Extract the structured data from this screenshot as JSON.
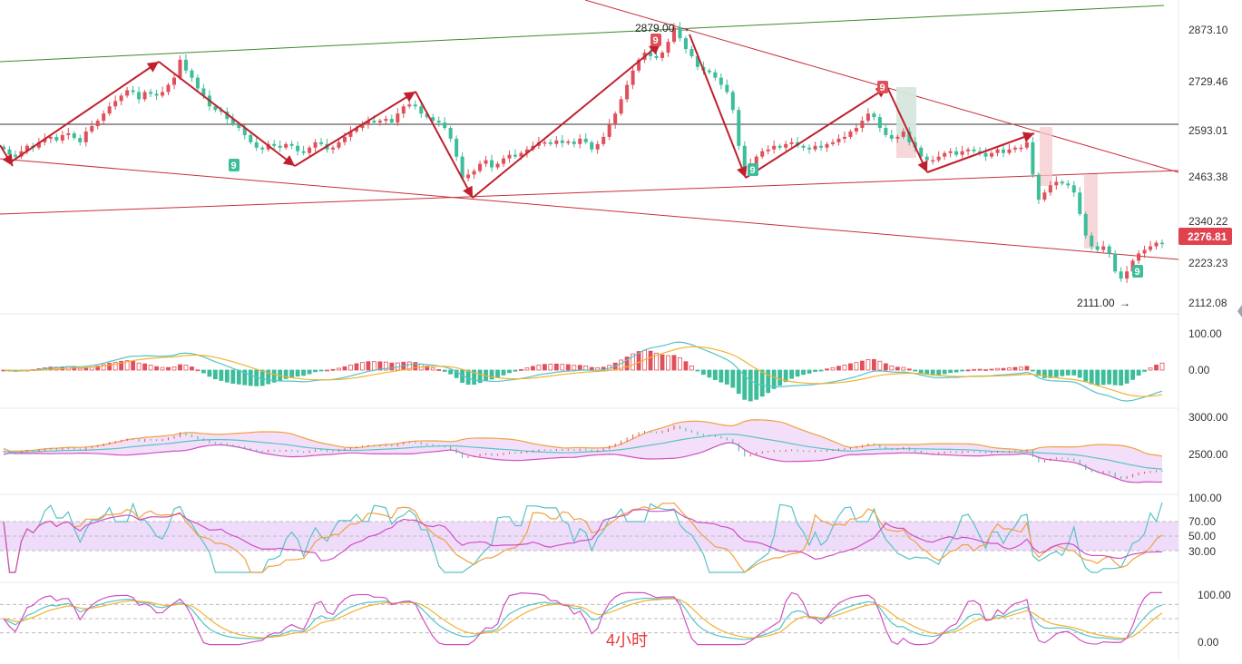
{
  "colors": {
    "up": "#e0505b",
    "down": "#3dbd9a",
    "trend_red": "#c8303a",
    "trend_green": "#3a8a2a",
    "wave_arrow": "#c0202d",
    "macd_dif": "#57c3c5",
    "macd_dea": "#f2b233",
    "boll_upper": "#f2a040",
    "boll_mid": "#57c3c5",
    "boll_lower": "#d050c0",
    "boll_fill": "#f2dcf8",
    "rsi_band": "#efdcfb",
    "rsi_1": "#d050c0",
    "rsi_2": "#f2a040",
    "rsi_3": "#57c3c5",
    "kdj_k": "#57c3c5",
    "kdj_d": "#f2b233",
    "kdj_j": "#d050c0",
    "current_price_bg": "#e04250"
  },
  "timeframe_label": "4小时",
  "main_panel": {
    "axis_labels": [
      "2873.10",
      "2729.46",
      "2593.01",
      "2463.38",
      "2340.22",
      "2223.23",
      "2112.08"
    ],
    "axis_values": [
      2873.1,
      2729.46,
      2593.01,
      2463.38,
      2340.22,
      2223.23,
      2112.08
    ],
    "current_price": "2276.81",
    "current_price_value": 2276.81,
    "high_label": "2879.00",
    "high_value": 2879.0,
    "low_label": "2111.00",
    "low_value": 2111.0,
    "horizontal_level": 2610,
    "nine_up_marker": "9",
    "nine_down_marker": "9"
  },
  "macd_panel": {
    "axis_labels": [
      "100.00",
      "0.00"
    ],
    "axis_values": [
      100,
      0
    ]
  },
  "boll_panel": {
    "axis_labels": [
      "3000.00",
      "2500.00"
    ],
    "axis_values": [
      3000,
      2500
    ]
  },
  "rsi_panel": {
    "axis_labels": [
      "100.00",
      "70.00",
      "50.00",
      "30.00"
    ],
    "axis_values": [
      100,
      70,
      50,
      30
    ]
  },
  "kdj_panel": {
    "axis_labels": [
      "100.00",
      "0.00"
    ],
    "axis_values": [
      100,
      0
    ]
  },
  "chart_data": {
    "type": "candlestick",
    "series": [
      {
        "name": "",
        "close": [
          2540,
          2525,
          2520,
          2535,
          2550,
          2545,
          2560,
          2570,
          2575,
          2565,
          2580,
          2585,
          2572,
          2560,
          2590,
          2605,
          2620,
          2640,
          2660,
          2675,
          2690,
          2705,
          2700,
          2680,
          2700,
          2695,
          2690,
          2700,
          2720,
          2740,
          2790,
          2760,
          2740,
          2710,
          2690,
          2660,
          2650,
          2645,
          2625,
          2610,
          2600,
          2580,
          2560,
          2545,
          2540,
          2555,
          2550,
          2545,
          2555,
          2550,
          2535,
          2530,
          2545,
          2560,
          2555,
          2540,
          2545,
          2560,
          2575,
          2590,
          2600,
          2610,
          2620,
          2615,
          2620,
          2625,
          2615,
          2640,
          2660,
          2665,
          2660,
          2640,
          2630,
          2620,
          2615,
          2600,
          2570,
          2520,
          2460,
          2470,
          2480,
          2500,
          2510,
          2490,
          2500,
          2515,
          2525,
          2520,
          2530,
          2540,
          2550,
          2560,
          2560,
          2555,
          2565,
          2558,
          2562,
          2555,
          2570,
          2560,
          2540,
          2555,
          2575,
          2610,
          2640,
          2680,
          2720,
          2760,
          2790,
          2810,
          2800,
          2795,
          2810,
          2840,
          2880,
          2850,
          2820,
          2800,
          2770,
          2760,
          2755,
          2740,
          2720,
          2700,
          2650,
          2550,
          2480,
          2500,
          2520,
          2535,
          2540,
          2550,
          2545,
          2555,
          2560,
          2550,
          2545,
          2540,
          2550,
          2545,
          2555,
          2560,
          2570,
          2575,
          2590,
          2600,
          2620,
          2640,
          2630,
          2600,
          2580,
          2570,
          2575,
          2590,
          2560,
          2545,
          2520,
          2510,
          2510,
          2520,
          2530,
          2535,
          2525,
          2535,
          2540,
          2535,
          2530,
          2520,
          2530,
          2540,
          2530,
          2540,
          2545,
          2545,
          2560,
          2470,
          2400,
          2420,
          2440,
          2450,
          2445,
          2440,
          2420,
          2360,
          2300,
          2270,
          2260,
          2270,
          2250,
          2200,
          2180,
          2200,
          2230,
          2250,
          2260,
          2270,
          2280,
          2276.81
        ],
        "high": 2879.0,
        "low": 2111.0
      }
    ],
    "ylim": [
      2080,
      2920
    ],
    "title": "",
    "xlabel": "",
    "ylabel": "",
    "legend": "none"
  }
}
